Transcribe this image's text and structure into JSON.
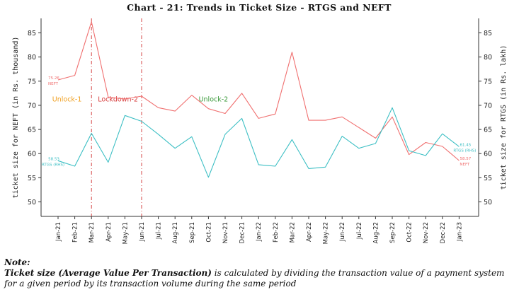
{
  "chart_data": {
    "type": "line",
    "title": "Chart - 21: Trends in Ticket Size - RTGS and NEFT",
    "ylabel_left": "ticket size for NEFT (in Rs. thousand)",
    "ylabel_right": "ticket size for RTGS (in Rs. lakh)",
    "ylim": [
      47,
      88
    ],
    "yticks": [
      50,
      55,
      60,
      65,
      70,
      75,
      80,
      85
    ],
    "categories": [
      "Jan-21",
      "Feb-21",
      "Mar-21",
      "Apr-21",
      "May-21",
      "Jun-21",
      "Jul-21",
      "Aug-21",
      "Sep-21",
      "Oct-21",
      "Nov-21",
      "Dec-21",
      "Jan-22",
      "Feb-22",
      "Mar-22",
      "Apr-22",
      "May-22",
      "Jun-22",
      "Jul-22",
      "Aug-22",
      "Sep-22",
      "Oct-22",
      "Nov-22",
      "Dec-22",
      "Jan-23"
    ],
    "series": [
      {
        "name": "NEFT",
        "color": "#f07070",
        "axis": "left",
        "values": [
          75.26,
          76.2,
          87.3,
          71.7,
          71.3,
          71.9,
          69.5,
          68.8,
          72.1,
          69.3,
          68.3,
          72.5,
          67.3,
          68.2,
          81.0,
          66.9,
          66.9,
          67.6,
          65.4,
          63.2,
          67.6,
          59.8,
          62.3,
          61.5,
          58.57
        ]
      },
      {
        "name": "RTGS",
        "color": "#3cbfc4",
        "axis": "right",
        "values": [
          58.53,
          57.4,
          64.2,
          58.2,
          67.9,
          66.7,
          64.0,
          61.1,
          63.5,
          55.1,
          64.0,
          67.3,
          57.7,
          57.4,
          62.9,
          56.9,
          57.2,
          63.6,
          61.1,
          62.1,
          69.5,
          60.6,
          59.6,
          64.1,
          61.45
        ]
      }
    ],
    "phase_lines": [
      {
        "category": "Mar-21",
        "color": "#d64545"
      },
      {
        "category": "Jun-21",
        "color": "#d64545"
      }
    ],
    "phase_labels": [
      {
        "text": "Unlock-1",
        "color": "#f0a020",
        "value": 71.2
      },
      {
        "text": "Lockdown-2",
        "color": "#d63a3a",
        "value": 71.2
      },
      {
        "text": "Unlock-2",
        "color": "#3a9a3a",
        "value": 71.2
      }
    ],
    "point_labels": [
      {
        "series": "NEFT",
        "category": "Jan-21",
        "value_text": "75.26",
        "tag": "NEFT"
      },
      {
        "series": "RTGS",
        "category": "Jan-21",
        "value_text": "58.53",
        "tag": "RTGS (RHS)"
      },
      {
        "series": "RTGS",
        "category": "Jan-23",
        "value_text": "61.45",
        "tag": "RTGS (RHS)"
      },
      {
        "series": "NEFT",
        "category": "Jan-23",
        "value_text": "58.57",
        "tag": "NEFT"
      }
    ]
  },
  "note": {
    "heading": "Note:",
    "term": "Ticket size (Average Value Per Transaction)",
    "text": " is calculated by dividing the transaction value of a payment system for a given period by its transaction volume during the same period"
  }
}
